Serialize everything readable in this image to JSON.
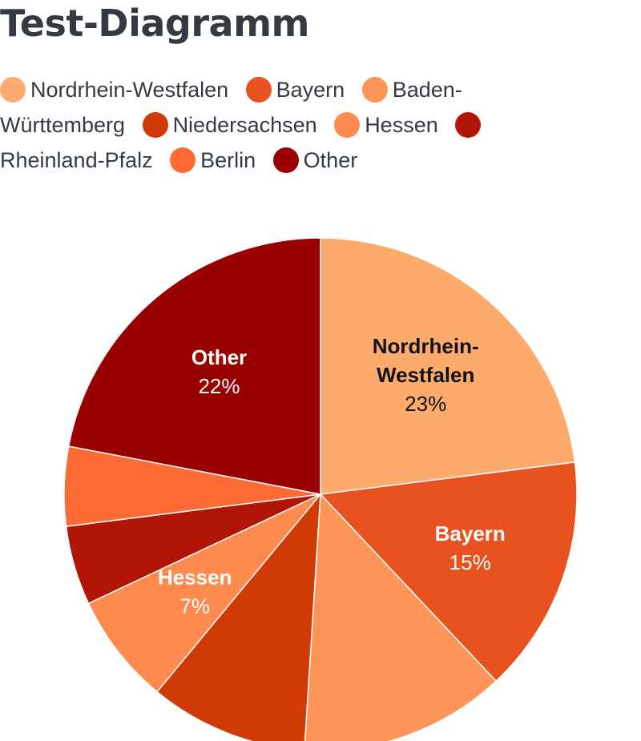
{
  "chart_data": {
    "type": "pie",
    "title": "Test-Diagramm",
    "legend_position": "top",
    "slices": [
      {
        "name": "Nordrhein-Westfalen",
        "value": 23,
        "color": "#fdab6c",
        "label_color": "#111111",
        "label_lines": [
          "Nordrhein-",
          "Westfalen"
        ],
        "value_text": "23%",
        "show_label": true
      },
      {
        "name": "Bayern",
        "value": 15,
        "color": "#e8521f",
        "label_color": "#ffffff",
        "label_lines": [
          "Bayern"
        ],
        "value_text": "15%",
        "show_label": true
      },
      {
        "name": "Baden-Württemberg",
        "value": 13,
        "color": "#fd9558",
        "label_color": "#111111",
        "label_lines": [],
        "value_text": "",
        "show_label": false
      },
      {
        "name": "Niedersachsen",
        "value": 10,
        "color": "#cf3a05",
        "label_color": "#ffffff",
        "label_lines": [],
        "value_text": "",
        "show_label": false
      },
      {
        "name": "Hessen",
        "value": 7,
        "color": "#fd8a4e",
        "label_color": "#ffffff",
        "label_lines": [
          "Hessen"
        ],
        "value_text": "7%",
        "show_label": true
      },
      {
        "name": "Rheinland-Pfalz",
        "value": 5,
        "color": "#b01505",
        "label_color": "#ffffff",
        "label_lines": [],
        "value_text": "",
        "show_label": false
      },
      {
        "name": "Berlin",
        "value": 5,
        "color": "#fd6a33",
        "label_color": "#ffffff",
        "label_lines": [],
        "value_text": "",
        "show_label": false
      },
      {
        "name": "Other",
        "value": 22,
        "color": "#990000",
        "label_color": "#ffffff",
        "label_lines": [
          "Other"
        ],
        "value_text": "22%",
        "show_label": true
      }
    ]
  }
}
